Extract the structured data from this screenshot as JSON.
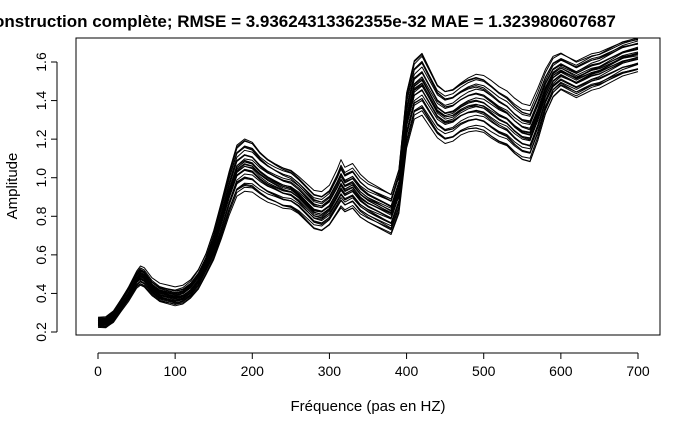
{
  "chart_data": {
    "type": "line",
    "title": "onstruction complète; RMSE = 3.93624313362355e-32 MAE = 1.323980607687",
    "xlabel": "Fréquence (pas en HZ)",
    "ylabel": "Amplitude",
    "xlim": [
      0,
      700
    ],
    "ylim": [
      0.2,
      1.7
    ],
    "x_ticks": [
      "0",
      "100",
      "200",
      "300",
      "400",
      "500",
      "600",
      "700"
    ],
    "y_ticks": [
      "0.2",
      "0.4",
      "0.6",
      "0.8",
      "1.0",
      "1.2",
      "1.4",
      "1.6"
    ],
    "grid": false,
    "legend": "none",
    "line_color": "#000000",
    "series_count": 30,
    "x": [
      0,
      10,
      20,
      30,
      40,
      50,
      55,
      60,
      70,
      80,
      90,
      100,
      110,
      120,
      130,
      140,
      150,
      160,
      170,
      180,
      190,
      200,
      210,
      220,
      230,
      240,
      250,
      260,
      270,
      280,
      290,
      300,
      310,
      315,
      320,
      330,
      340,
      350,
      360,
      370,
      380,
      390,
      400,
      410,
      420,
      430,
      440,
      450,
      460,
      470,
      480,
      490,
      500,
      510,
      520,
      530,
      540,
      550,
      560,
      570,
      580,
      590,
      600,
      610,
      620,
      630,
      640,
      650,
      660,
      670,
      680,
      690,
      700
    ],
    "median_series": [
      0.25,
      0.25,
      0.28,
      0.34,
      0.4,
      0.47,
      0.49,
      0.48,
      0.43,
      0.4,
      0.39,
      0.38,
      0.39,
      0.42,
      0.47,
      0.55,
      0.65,
      0.78,
      0.92,
      1.04,
      1.07,
      1.06,
      1.02,
      0.99,
      0.97,
      0.95,
      0.94,
      0.91,
      0.87,
      0.83,
      0.82,
      0.85,
      0.92,
      0.96,
      0.93,
      0.95,
      0.9,
      0.87,
      0.85,
      0.83,
      0.81,
      0.93,
      1.3,
      1.46,
      1.49,
      1.42,
      1.35,
      1.32,
      1.33,
      1.36,
      1.38,
      1.39,
      1.38,
      1.35,
      1.32,
      1.3,
      1.26,
      1.23,
      1.22,
      1.32,
      1.44,
      1.52,
      1.55,
      1.53,
      1.51,
      1.53,
      1.55,
      1.56,
      1.58,
      1.6,
      1.62,
      1.63,
      1.64
    ],
    "amplitude_spread": [
      0.02,
      0.025,
      0.028,
      0.03,
      0.035,
      0.04,
      0.045,
      0.045,
      0.04,
      0.04,
      0.04,
      0.04,
      0.04,
      0.04,
      0.045,
      0.05,
      0.07,
      0.09,
      0.11,
      0.13,
      0.135,
      0.13,
      0.12,
      0.115,
      0.11,
      0.11,
      0.105,
      0.1,
      0.1,
      0.1,
      0.1,
      0.1,
      0.11,
      0.12,
      0.11,
      0.11,
      0.105,
      0.1,
      0.1,
      0.1,
      0.1,
      0.11,
      0.14,
      0.15,
      0.16,
      0.15,
      0.14,
      0.14,
      0.14,
      0.14,
      0.145,
      0.15,
      0.15,
      0.15,
      0.145,
      0.14,
      0.14,
      0.14,
      0.14,
      0.13,
      0.11,
      0.1,
      0.09,
      0.09,
      0.09,
      0.09,
      0.09,
      0.09,
      0.09,
      0.09,
      0.09,
      0.09,
      0.09
    ]
  }
}
